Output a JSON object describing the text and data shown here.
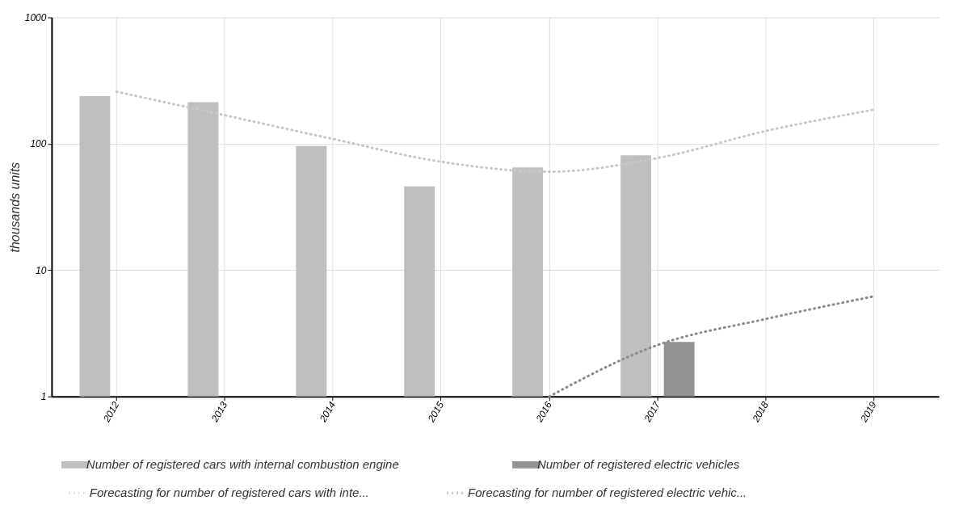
{
  "chart_data": {
    "type": "bar",
    "ylabel": "thousands units",
    "categories": [
      "2012",
      "2013",
      "2014",
      "2015",
      "2016",
      "2017",
      "2018",
      "2019"
    ],
    "series": [
      {
        "name": "Number of registered cars with internal combustion engine",
        "color": "#bfbfbf",
        "values": [
          238,
          213,
          96,
          46,
          65,
          81,
          null,
          null
        ]
      },
      {
        "name": "Number of registered electric vehicles",
        "color": "#929292",
        "values": [
          1,
          1,
          1,
          1,
          null,
          2.7,
          null,
          null
        ]
      },
      {
        "name": "Forecasting for number of registered cars with inte...",
        "type": "line",
        "line_style": "dotted",
        "color": "#c8c8c8",
        "values": [
          258,
          168,
          109,
          72,
          60,
          77,
          126,
          186
        ]
      },
      {
        "name": "Forecasting for number of registered electric vehic...",
        "type": "line",
        "line_style": "dotted",
        "color": "#8c8c8c",
        "values": [
          null,
          null,
          null,
          null,
          1,
          2.55,
          4.1,
          6.2
        ]
      }
    ],
    "log": true,
    "ylim": [
      1,
      1000
    ],
    "yticks": [
      1,
      10,
      100,
      1000
    ],
    "grid": true,
    "legend": "bottom"
  }
}
